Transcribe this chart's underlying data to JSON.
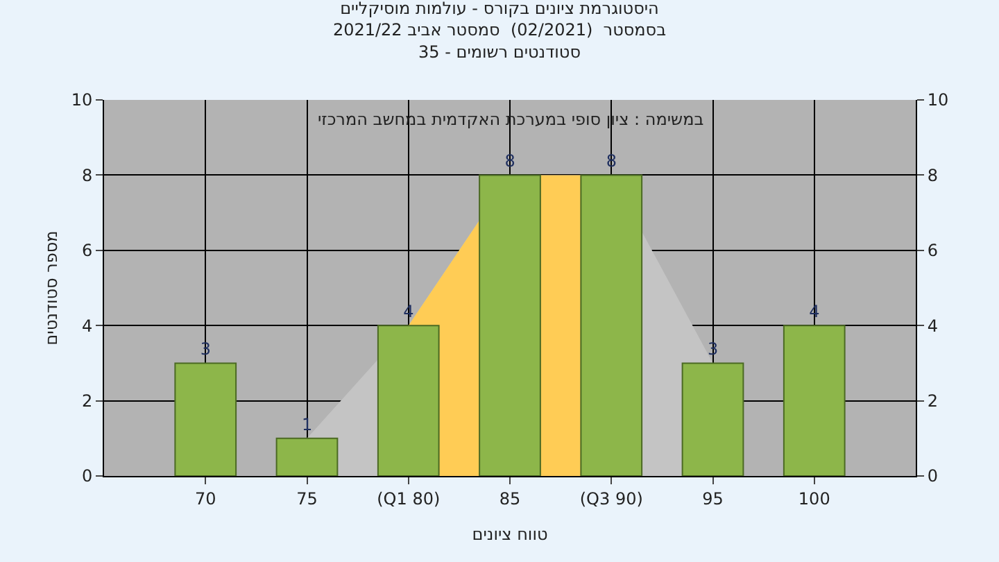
{
  "chart_data": {
    "type": "bar",
    "title": "היסטוגרמת ציונים בקורס - עולמות מוסיקליים\nבסמסטר  (02/2021)  סמסטר אביב 2021/22\nסטודנטים רשומים - 35",
    "xlabel": "טווח ציונים",
    "ylabel": "מספר סטודנטים",
    "annotations": [
      "במשימה : ציון סופי במערכת האקדמית במחשב המרכזי"
    ],
    "categories": [
      "70",
      "75",
      "(Q1 80)",
      "85",
      "(Q3 90)",
      "95",
      "100"
    ],
    "series": [
      {
        "type": "area",
        "color": "#c4c4c4",
        "values": [
          null,
          1,
          4,
          8,
          8,
          3,
          null
        ]
      },
      {
        "type": "area",
        "color": "#ffcc55",
        "values": [
          null,
          null,
          4,
          8,
          8,
          null,
          null
        ]
      },
      {
        "axis": "y2",
        "color": "#8db64a",
        "values": [
          3,
          1,
          4,
          8,
          8,
          3,
          4
        ],
        "value_labels": [
          "3",
          "1",
          "4",
          "8",
          "8",
          "3",
          "4"
        ]
      }
    ],
    "ylim": [
      0,
      10
    ],
    "yticks": [
      0,
      2,
      4,
      6,
      8,
      10
    ],
    "y2lim": [
      0,
      10
    ],
    "y2ticks": [
      0,
      2,
      4,
      6,
      8,
      10
    ],
    "grid": true
  }
}
